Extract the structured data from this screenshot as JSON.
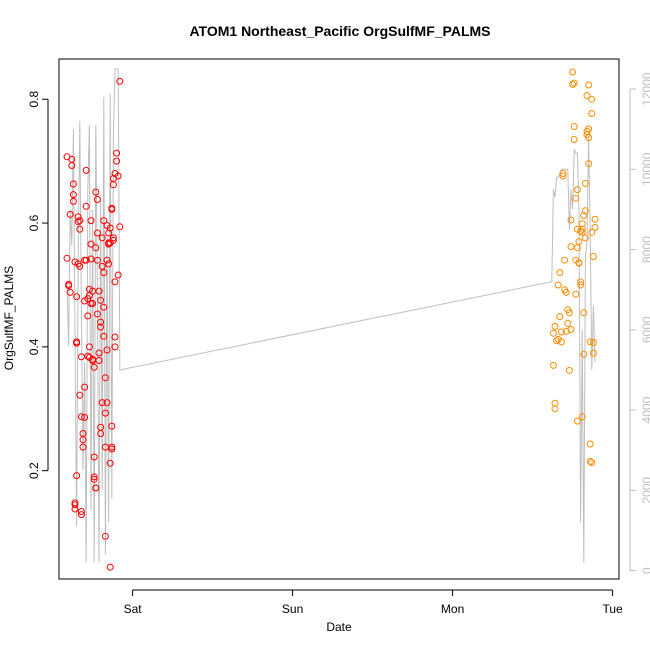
{
  "chart_data": {
    "type": "scatter",
    "title": "ATOM1 Northeast_Pacific OrgSulfMF_PALMS",
    "xlabel": "Date",
    "ylabel": "OrgSulfMF_PALMS",
    "x_ticks": [
      {
        "label": "Sat",
        "value": 1.0
      },
      {
        "label": "Sun",
        "value": 2.0
      },
      {
        "label": "Mon",
        "value": 3.0
      },
      {
        "label": "Tue",
        "value": 4.0
      }
    ],
    "xlim": [
      0.54,
      4.04
    ],
    "ylim": [
      0.025,
      0.865
    ],
    "y_ticks": [
      0.2,
      0.4,
      0.6,
      0.8
    ],
    "y2_ticks": [
      0,
      2000,
      4000,
      6000,
      8000,
      10000,
      12000
    ],
    "y2lim": [
      -210,
      12750
    ],
    "series": [
      {
        "color": "#ff0000",
        "points": [
          [
            0.59,
            0.707
          ],
          [
            0.59,
            0.543
          ],
          [
            0.6,
            0.501
          ],
          [
            0.6,
            0.499
          ],
          [
            0.61,
            0.488
          ],
          [
            0.61,
            0.614
          ],
          [
            0.62,
            0.703
          ],
          [
            0.62,
            0.693
          ],
          [
            0.63,
            0.663
          ],
          [
            0.63,
            0.646
          ],
          [
            0.63,
            0.635
          ],
          [
            0.64,
            0.537
          ],
          [
            0.64,
            0.148
          ],
          [
            0.64,
            0.145
          ],
          [
            0.64,
            0.138
          ],
          [
            0.65,
            0.192
          ],
          [
            0.65,
            0.406
          ],
          [
            0.65,
            0.408
          ],
          [
            0.65,
            0.481
          ],
          [
            0.66,
            0.534
          ],
          [
            0.66,
            0.602
          ],
          [
            0.66,
            0.61
          ],
          [
            0.67,
            0.53
          ],
          [
            0.67,
            0.604
          ],
          [
            0.67,
            0.59
          ],
          [
            0.67,
            0.322
          ],
          [
            0.68,
            0.287
          ],
          [
            0.68,
            0.134
          ],
          [
            0.68,
            0.129
          ],
          [
            0.68,
            0.384
          ],
          [
            0.69,
            0.26
          ],
          [
            0.69,
            0.25
          ],
          [
            0.69,
            0.238
          ],
          [
            0.7,
            0.335
          ],
          [
            0.7,
            0.286
          ],
          [
            0.7,
            0.54
          ],
          [
            0.7,
            0.474
          ],
          [
            0.71,
            0.685
          ],
          [
            0.71,
            0.627
          ],
          [
            0.71,
            0.54
          ],
          [
            0.72,
            0.478
          ],
          [
            0.72,
            0.45
          ],
          [
            0.72,
            0.385
          ],
          [
            0.73,
            0.383
          ],
          [
            0.73,
            0.4
          ],
          [
            0.73,
            0.493
          ],
          [
            0.73,
            0.483
          ],
          [
            0.74,
            0.542
          ],
          [
            0.74,
            0.604
          ],
          [
            0.74,
            0.566
          ],
          [
            0.74,
            0.47
          ],
          [
            0.75,
            0.378
          ],
          [
            0.75,
            0.38
          ],
          [
            0.75,
            0.49
          ],
          [
            0.75,
            0.47
          ],
          [
            0.76,
            0.367
          ],
          [
            0.76,
            0.222
          ],
          [
            0.76,
            0.19
          ],
          [
            0.76,
            0.186
          ],
          [
            0.77,
            0.172
          ],
          [
            0.77,
            0.172
          ],
          [
            0.77,
            0.56
          ],
          [
            0.77,
            0.65
          ],
          [
            0.78,
            0.638
          ],
          [
            0.78,
            0.584
          ],
          [
            0.78,
            0.453
          ],
          [
            0.78,
            0.54
          ],
          [
            0.79,
            0.378
          ],
          [
            0.79,
            0.39
          ],
          [
            0.79,
            0.49
          ],
          [
            0.8,
            0.475
          ],
          [
            0.8,
            0.432
          ],
          [
            0.8,
            0.44
          ],
          [
            0.8,
            0.26
          ],
          [
            0.8,
            0.27
          ],
          [
            0.81,
            0.31
          ],
          [
            0.81,
            0.53
          ],
          [
            0.81,
            0.576
          ],
          [
            0.82,
            0.604
          ],
          [
            0.82,
            0.52
          ],
          [
            0.82,
            0.464
          ],
          [
            0.82,
            0.417
          ],
          [
            0.83,
            0.293
          ],
          [
            0.83,
            0.35
          ],
          [
            0.83,
            0.238
          ],
          [
            0.83,
            0.094
          ],
          [
            0.84,
            0.31
          ],
          [
            0.84,
            0.395
          ],
          [
            0.84,
            0.54
          ],
          [
            0.84,
            0.596
          ],
          [
            0.85,
            0.584
          ],
          [
            0.85,
            0.566
          ],
          [
            0.85,
            0.568
          ],
          [
            0.85,
            0.534
          ],
          [
            0.86,
            0.592
          ],
          [
            0.86,
            0.568
          ],
          [
            0.86,
            0.044
          ],
          [
            0.86,
            0.212
          ],
          [
            0.87,
            0.235
          ],
          [
            0.87,
            0.238
          ],
          [
            0.87,
            0.272
          ],
          [
            0.87,
            0.624
          ],
          [
            0.87,
            0.622
          ],
          [
            0.88,
            0.576
          ],
          [
            0.88,
            0.572
          ],
          [
            0.88,
            0.672
          ],
          [
            0.88,
            0.662
          ],
          [
            0.89,
            0.68
          ],
          [
            0.89,
            0.505
          ],
          [
            0.89,
            0.416
          ],
          [
            0.89,
            0.4
          ],
          [
            0.9,
            0.713
          ],
          [
            0.9,
            0.7
          ],
          [
            0.91,
            0.676
          ],
          [
            0.91,
            0.516
          ],
          [
            0.92,
            0.594
          ],
          [
            0.92,
            0.829
          ]
        ]
      },
      {
        "color": "#ff8c00",
        "points": [
          [
            3.63,
            0.422
          ],
          [
            3.63,
            0.37
          ],
          [
            3.64,
            0.3
          ],
          [
            3.64,
            0.309
          ],
          [
            3.64,
            0.433
          ],
          [
            3.65,
            0.41
          ],
          [
            3.66,
            0.412
          ],
          [
            3.66,
            0.5
          ],
          [
            3.67,
            0.52
          ],
          [
            3.67,
            0.449
          ],
          [
            3.68,
            0.408
          ],
          [
            3.68,
            0.424
          ],
          [
            3.69,
            0.68
          ],
          [
            3.69,
            0.676
          ],
          [
            3.7,
            0.54
          ],
          [
            3.7,
            0.492
          ],
          [
            3.71,
            0.425
          ],
          [
            3.71,
            0.488
          ],
          [
            3.72,
            0.438
          ],
          [
            3.72,
            0.46
          ],
          [
            3.73,
            0.455
          ],
          [
            3.73,
            0.362
          ],
          [
            3.74,
            0.605
          ],
          [
            3.74,
            0.562
          ],
          [
            3.74,
            0.428
          ],
          [
            3.75,
            0.844
          ],
          [
            3.75,
            0.824
          ],
          [
            3.76,
            0.826
          ],
          [
            3.76,
            0.756
          ],
          [
            3.76,
            0.735
          ],
          [
            3.77,
            0.64
          ],
          [
            3.77,
            0.54
          ],
          [
            3.77,
            0.485
          ],
          [
            3.78,
            0.28
          ],
          [
            3.78,
            0.654
          ],
          [
            3.78,
            0.59
          ],
          [
            3.78,
            0.56
          ],
          [
            3.79,
            0.57
          ],
          [
            3.79,
            0.536
          ],
          [
            3.79,
            0.535
          ],
          [
            3.8,
            0.5
          ],
          [
            3.8,
            0.505
          ],
          [
            3.8,
            0.587
          ],
          [
            3.81,
            0.287
          ],
          [
            3.81,
            0.599
          ],
          [
            3.81,
            0.585
          ],
          [
            3.81,
            0.59
          ],
          [
            3.82,
            0.455
          ],
          [
            3.82,
            0.388
          ],
          [
            3.82,
            0.612
          ],
          [
            3.83,
            0.664
          ],
          [
            3.83,
            0.62
          ],
          [
            3.83,
            0.576
          ],
          [
            3.84,
            0.743
          ],
          [
            3.84,
            0.748
          ],
          [
            3.84,
            0.806
          ],
          [
            3.85,
            0.823
          ],
          [
            3.85,
            0.752
          ],
          [
            3.85,
            0.738
          ],
          [
            3.85,
            0.696
          ],
          [
            3.86,
            0.408
          ],
          [
            3.86,
            0.243
          ],
          [
            3.86,
            0.215
          ],
          [
            3.87,
            0.213
          ],
          [
            3.87,
            0.8
          ],
          [
            3.87,
            0.777
          ],
          [
            3.87,
            0.585
          ],
          [
            3.88,
            0.546
          ],
          [
            3.88,
            0.407
          ],
          [
            3.88,
            0.39
          ],
          [
            3.89,
            0.606
          ],
          [
            3.89,
            0.593
          ]
        ]
      }
    ],
    "trace": {
      "color": "#bebebe",
      "axis": "right",
      "points": [
        [
          0.59,
          7200
        ],
        [
          0.6,
          5600
        ],
        [
          0.61,
          9000
        ],
        [
          0.62,
          8100
        ],
        [
          0.63,
          11000
        ],
        [
          0.64,
          6000
        ],
        [
          0.65,
          1100
        ],
        [
          0.66,
          7800
        ],
        [
          0.67,
          11200
        ],
        [
          0.68,
          6500
        ],
        [
          0.69,
          2500
        ],
        [
          0.7,
          5200
        ],
        [
          0.71,
          200
        ],
        [
          0.72,
          9500
        ],
        [
          0.73,
          11100
        ],
        [
          0.74,
          1500
        ],
        [
          0.75,
          9000
        ],
        [
          0.76,
          200
        ],
        [
          0.77,
          11100
        ],
        [
          0.78,
          7000
        ],
        [
          0.79,
          200
        ],
        [
          0.8,
          9300
        ],
        [
          0.81,
          2000
        ],
        [
          0.82,
          11800
        ],
        [
          0.83,
          400
        ],
        [
          0.84,
          8300
        ],
        [
          0.85,
          1200
        ],
        [
          0.86,
          11900
        ],
        [
          0.87,
          1800
        ],
        [
          0.88,
          10800
        ],
        [
          0.89,
          12500
        ],
        [
          0.9,
          12500
        ],
        [
          0.91,
          12500
        ],
        [
          0.92,
          5300
        ],
        [
          0.92,
          5000
        ],
        [
          3.62,
          7200
        ],
        [
          3.63,
          9500
        ],
        [
          3.64,
          9300
        ],
        [
          3.65,
          9800
        ],
        [
          3.66,
          9800
        ],
        [
          3.68,
          10000
        ],
        [
          3.7,
          10000
        ],
        [
          3.72,
          10000
        ],
        [
          3.73,
          8500
        ],
        [
          3.74,
          9500
        ],
        [
          3.75,
          9000
        ],
        [
          3.76,
          10500
        ],
        [
          3.77,
          10400
        ],
        [
          3.78,
          10400
        ],
        [
          3.79,
          8900
        ],
        [
          3.8,
          1200
        ],
        [
          3.81,
          6000
        ],
        [
          3.82,
          200
        ],
        [
          3.83,
          7800
        ],
        [
          3.84,
          8200
        ],
        [
          3.85,
          10800
        ],
        [
          3.86,
          8500
        ],
        [
          3.87,
          5000
        ],
        [
          3.88,
          6600
        ],
        [
          3.89,
          5200
        ]
      ]
    }
  }
}
